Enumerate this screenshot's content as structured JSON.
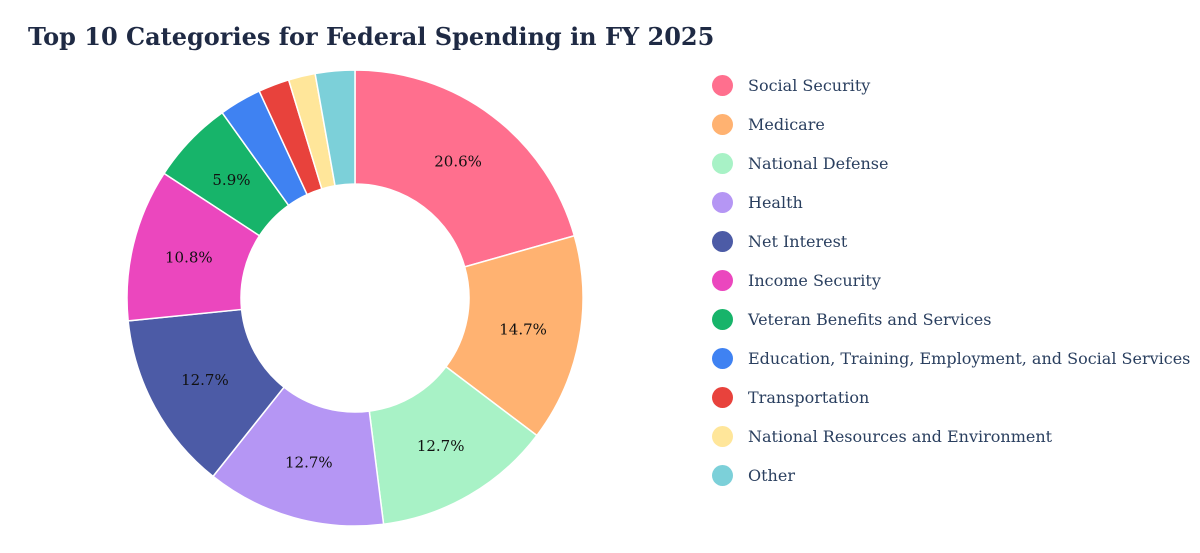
{
  "chart_data": {
    "type": "pie",
    "hole": true,
    "title": "Top 10 Categories for Federal Spending in FY 2025",
    "legend_position": "right",
    "slices": [
      {
        "label": "Social Security",
        "value": 20.6,
        "color": "#FF6F8E",
        "text": "20.6%"
      },
      {
        "label": "Medicare",
        "value": 14.7,
        "color": "#FFB271",
        "text": "14.7%"
      },
      {
        "label": "National Defense",
        "value": 12.7,
        "color": "#A8F2C6",
        "text": "12.7%"
      },
      {
        "label": "Health",
        "value": 12.7,
        "color": "#B596F4",
        "text": "12.7%"
      },
      {
        "label": "Net Interest",
        "value": 12.7,
        "color": "#4C5BA6",
        "text": "12.7%"
      },
      {
        "label": "Income Security",
        "value": 10.8,
        "color": "#EB47BE",
        "text": "10.8%"
      },
      {
        "label": "Veteran Benefits and Services",
        "value": 5.9,
        "color": "#17B46A",
        "text": "5.9%"
      },
      {
        "label": "Education, Training, Employment, and Social Services",
        "value": 3.0,
        "color": "#3F82F2",
        "text": ""
      },
      {
        "label": "Transportation",
        "value": 2.2,
        "color": "#E8423C",
        "text": ""
      },
      {
        "label": "National Resources and Environment",
        "value": 1.9,
        "color": "#FFE69A",
        "text": ""
      },
      {
        "label": "Other",
        "value": 2.8,
        "color": "#7CD0D9",
        "text": ""
      }
    ]
  }
}
